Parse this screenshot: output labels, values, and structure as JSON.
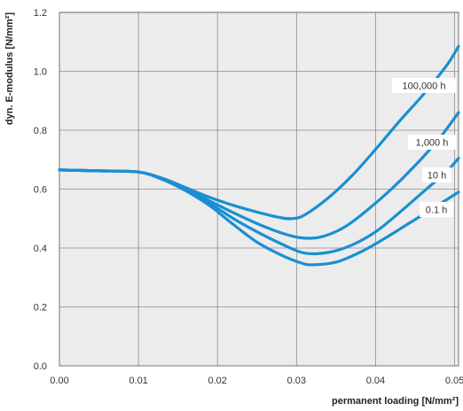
{
  "chart_data": {
    "type": "line",
    "title": "",
    "xlabel": "permanent loading [N/mm²]",
    "ylabel": "dyn. E-modulus [N/mm²]",
    "xlim": [
      0,
      0.0505
    ],
    "ylim": [
      0,
      1.2
    ],
    "x_ticks": [
      0,
      0.01,
      0.02,
      0.03,
      0.04,
      0.05
    ],
    "x_tick_labels": [
      "0.00",
      "0.01",
      "0.02",
      "0.03",
      "0.04",
      "0.05"
    ],
    "y_ticks": [
      0,
      0.2,
      0.4,
      0.6,
      0.8,
      1.0,
      1.2
    ],
    "y_tick_labels": [
      "0.0",
      "0.2",
      "0.4",
      "0.6",
      "0.8",
      "1.0",
      "1.2"
    ],
    "grid": true,
    "legend": "inline labels at right end of each curve",
    "colors": {
      "line": "#1a8fd1",
      "plot_bg": "#ececec",
      "grid": "#8c8c8c"
    },
    "series": [
      {
        "name": "100,000 h",
        "x": [
          0,
          0.005,
          0.01,
          0.013,
          0.016,
          0.019,
          0.022,
          0.025,
          0.028,
          0.0295,
          0.031,
          0.034,
          0.037,
          0.04,
          0.043,
          0.046,
          0.049,
          0.0505
        ],
        "y": [
          0.665,
          0.662,
          0.658,
          0.637,
          0.605,
          0.572,
          0.545,
          0.522,
          0.503,
          0.5,
          0.512,
          0.57,
          0.645,
          0.735,
          0.83,
          0.92,
          1.02,
          1.085
        ]
      },
      {
        "name": "1,000 h",
        "x": [
          0,
          0.005,
          0.01,
          0.013,
          0.016,
          0.019,
          0.022,
          0.025,
          0.028,
          0.0305,
          0.033,
          0.036,
          0.039,
          0.042,
          0.045,
          0.048,
          0.0505
        ],
        "y": [
          0.665,
          0.662,
          0.658,
          0.635,
          0.6,
          0.56,
          0.52,
          0.483,
          0.452,
          0.435,
          0.437,
          0.47,
          0.53,
          0.6,
          0.68,
          0.77,
          0.86
        ]
      },
      {
        "name": "10 h",
        "x": [
          0,
          0.005,
          0.01,
          0.013,
          0.016,
          0.019,
          0.022,
          0.025,
          0.028,
          0.031,
          0.034,
          0.037,
          0.04,
          0.043,
          0.046,
          0.049,
          0.0505
        ],
        "y": [
          0.665,
          0.662,
          0.658,
          0.634,
          0.597,
          0.552,
          0.5,
          0.455,
          0.415,
          0.383,
          0.385,
          0.41,
          0.455,
          0.52,
          0.59,
          0.66,
          0.705
        ]
      },
      {
        "name": "0.1 h",
        "x": [
          0,
          0.005,
          0.01,
          0.013,
          0.016,
          0.019,
          0.022,
          0.025,
          0.028,
          0.0305,
          0.032,
          0.035,
          0.038,
          0.041,
          0.044,
          0.047,
          0.0505
        ],
        "y": [
          0.665,
          0.662,
          0.658,
          0.633,
          0.594,
          0.544,
          0.48,
          0.42,
          0.377,
          0.35,
          0.343,
          0.352,
          0.385,
          0.43,
          0.48,
          0.53,
          0.59
        ]
      }
    ]
  }
}
